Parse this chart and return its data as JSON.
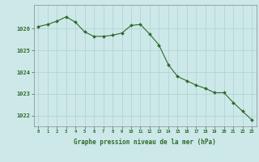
{
  "hours": [
    0,
    1,
    2,
    3,
    4,
    5,
    6,
    7,
    8,
    9,
    10,
    11,
    12,
    13,
    14,
    15,
    16,
    17,
    18,
    19,
    20,
    21,
    22,
    23
  ],
  "pressure": [
    1026.1,
    1026.2,
    1026.35,
    1026.55,
    1026.3,
    1025.85,
    1025.65,
    1025.65,
    1025.7,
    1025.8,
    1026.15,
    1026.2,
    1025.75,
    1025.25,
    1024.35,
    1023.8,
    1023.6,
    1023.4,
    1023.25,
    1023.05,
    1023.05,
    1022.6,
    1022.2,
    1021.8
  ],
  "line_color": "#2d6a2d",
  "marker_color": "#2d6a2d",
  "bg_color": "#cce8e8",
  "grid_color": "#b0d0d0",
  "tick_label_color": "#2d6a2d",
  "xlabel": "Graphe pression niveau de la mer (hPa)",
  "ylim_min": 1021.5,
  "ylim_max": 1027.1,
  "yticks": [
    1022,
    1023,
    1024,
    1025,
    1026
  ],
  "xticks": [
    0,
    1,
    2,
    3,
    4,
    5,
    6,
    7,
    8,
    9,
    10,
    11,
    12,
    13,
    14,
    15,
    16,
    17,
    18,
    19,
    20,
    21,
    22,
    23
  ]
}
